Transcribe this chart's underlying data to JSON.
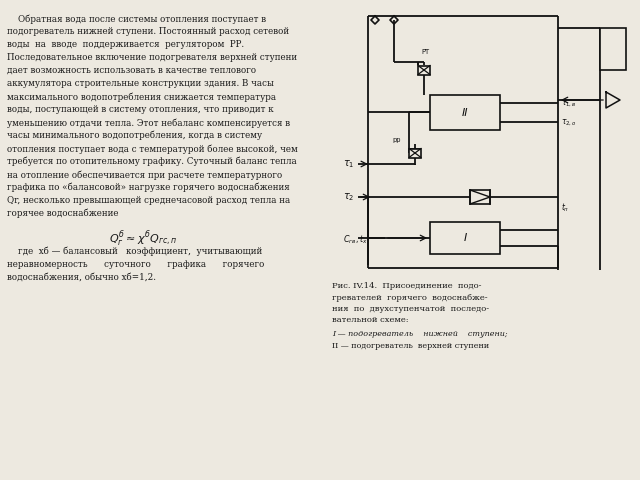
{
  "bg_color": "#ede9e0",
  "text_color": "#1a1a1a",
  "line_color": "#111111",
  "main_text_lines": [
    "    Обратная вода после системы отопления поступает в",
    "подогреватель нижней ступени. Постоянный расход сетевой",
    "воды  на  вводе  поддерживается  регулятором  РР.",
    "Последовательное включение подогревателя верхней ступени",
    "дает возможность использовать в качестве теплового",
    "аккумулятора строительные конструкции здания. В часы",
    "максимального водопотребления снижается температура",
    "воды, поступающей в систему отопления, что приводит к",
    "уменьшению отдачи тепла. Этот небаланс компенсируется в",
    "часы минимального водопотребления, когда в систему",
    "отопления поступает вода с температурой более высокой, чем",
    "требуется по отопительному графику. Суточный баланс тепла",
    "на отопление обеспечивается при расчете температурного",
    "графика по «балансовой» нагрузке горячего водоснабжения",
    "Qr, несколько превышающей среднечасовой расход тепла на",
    "горячее водоснабжение"
  ],
  "where_text_lines": [
    "    где  хб — балансовый   коэффициент,  учитывающий",
    "неравномерность      суточного      графика      горячего",
    "водоснабжения, обычно хб=1,2."
  ],
  "fig_caption": [
    "Рис. IV.14.  Присоединение  подо-",
    "гревателей  горячего  водоснабже-",
    "ния  по  двухступенчатой  последо-",
    "вательной схеме:"
  ],
  "fig_legend": [
    "I — подогреватель    нижней    ступени;",
    "II — подогреватель  верхней ступени"
  ]
}
